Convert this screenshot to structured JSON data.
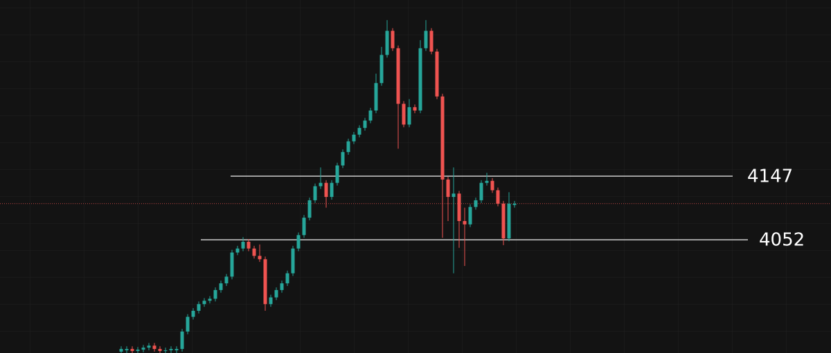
{
  "chart_data": {
    "type": "candlestick",
    "ylim": [
      3883,
      4410
    ],
    "up_color": "#26a69a",
    "down_color": "#ef5350",
    "open": [
      3885,
      3887,
      3889,
      3886,
      3888,
      3891,
      3894,
      3889,
      3886,
      3887,
      3887,
      3889,
      3915,
      3937,
      3946,
      3956,
      3961,
      3964,
      3977,
      3987,
      3997,
      4033,
      4039,
      4049,
      4039,
      4028,
      4023,
      3956,
      3966,
      3977,
      3987,
      4002,
      4039,
      4059,
      4085,
      4111,
      4132,
      4137,
      4116,
      4137,
      4163,
      4183,
      4199,
      4209,
      4219,
      4230,
      4245,
      4286,
      4328,
      4364,
      4338,
      4255,
      4224,
      4250,
      4245,
      4338,
      4364,
      4333,
      4266,
      4142,
      4116,
      4121,
      4080,
      4075,
      4101,
      4111,
      4137,
      4140,
      4126,
      4106,
      4054,
      4104
    ],
    "high": [
      3893,
      3893,
      3893,
      3892,
      3895,
      3898,
      3898,
      3893,
      3891,
      3893,
      3893,
      3919,
      3941,
      3950,
      3960,
      3965,
      3968,
      3981,
      3991,
      4001,
      4037,
      4043,
      4056,
      4053,
      4043,
      4045,
      4027,
      3970,
      3981,
      3991,
      4006,
      4043,
      4063,
      4089,
      4115,
      4136,
      4160,
      4141,
      4141,
      4167,
      4187,
      4203,
      4213,
      4223,
      4234,
      4249,
      4300,
      4340,
      4380,
      4368,
      4342,
      4259,
      4262,
      4254,
      4350,
      4380,
      4368,
      4337,
      4270,
      4146,
      4160,
      4125,
      4100,
      4105,
      4115,
      4141,
      4152,
      4144,
      4130,
      4110,
      4123,
      4110
    ],
    "low": [
      3881,
      3883,
      3882,
      3882,
      3884,
      3887,
      3885,
      3882,
      3882,
      3883,
      3883,
      3885,
      3911,
      3933,
      3942,
      3952,
      3957,
      3960,
      3973,
      3983,
      3993,
      4029,
      4035,
      4035,
      4024,
      4019,
      3946,
      3952,
      3962,
      3973,
      3983,
      3998,
      4035,
      4055,
      4081,
      4107,
      4128,
      4100,
      4112,
      4133,
      4159,
      4179,
      4195,
      4205,
      4215,
      4226,
      4241,
      4282,
      4324,
      4334,
      4188,
      4220,
      4220,
      4241,
      4241,
      4334,
      4329,
      4262,
      4055,
      4080,
      4002,
      4040,
      4013,
      4071,
      4097,
      4107,
      4133,
      4122,
      4102,
      4044,
      4050,
      4100
    ],
    "close": [
      3889,
      3889,
      3886,
      3888,
      3891,
      3894,
      3889,
      3886,
      3887,
      3889,
      3889,
      3915,
      3937,
      3946,
      3956,
      3961,
      3964,
      3977,
      3987,
      3997,
      4033,
      4039,
      4049,
      4039,
      4028,
      4023,
      3956,
      3966,
      3977,
      3987,
      4002,
      4039,
      4059,
      4085,
      4111,
      4132,
      4137,
      4116,
      4137,
      4163,
      4183,
      4199,
      4209,
      4219,
      4230,
      4245,
      4286,
      4328,
      4364,
      4338,
      4255,
      4224,
      4250,
      4245,
      4338,
      4364,
      4333,
      4266,
      4142,
      4116,
      4121,
      4080,
      4075,
      4101,
      4111,
      4137,
      4140,
      4126,
      4106,
      4054,
      4106,
      4106
    ],
    "levels": [
      4147,
      4052
    ],
    "last_price": 4106
  }
}
